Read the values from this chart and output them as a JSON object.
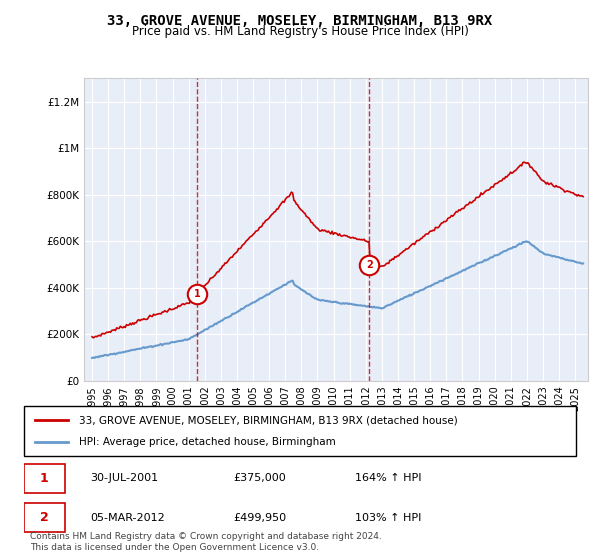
{
  "title": "33, GROVE AVENUE, MOSELEY, BIRMINGHAM, B13 9RX",
  "subtitle": "Price paid vs. HM Land Registry's House Price Index (HPI)",
  "legend_line1": "33, GROVE AVENUE, MOSELEY, BIRMINGHAM, B13 9RX (detached house)",
  "legend_line2": "HPI: Average price, detached house, Birmingham",
  "transaction1_date": "30-JUL-2001",
  "transaction1_price": 375000,
  "transaction1_pct": "164% ↑ HPI",
  "transaction2_date": "05-MAR-2012",
  "transaction2_price": 499950,
  "transaction2_pct": "103% ↑ HPI",
  "footer": "Contains HM Land Registry data © Crown copyright and database right 2024.\nThis data is licensed under the Open Government Licence v3.0.",
  "red_color": "#cc0000",
  "blue_color": "#6699cc",
  "background_color": "#e8eef8",
  "ylim": [
    0,
    1300000
  ],
  "yticks": [
    0,
    200000,
    400000,
    600000,
    800000,
    1000000,
    1200000
  ],
  "xlabel_years": [
    1995,
    1996,
    1997,
    1998,
    1999,
    2000,
    2001,
    2002,
    2003,
    2004,
    2005,
    2006,
    2007,
    2008,
    2009,
    2010,
    2011,
    2012,
    2013,
    2014,
    2015,
    2016,
    2017,
    2018,
    2019,
    2020,
    2021,
    2022,
    2023,
    2024,
    2025
  ]
}
